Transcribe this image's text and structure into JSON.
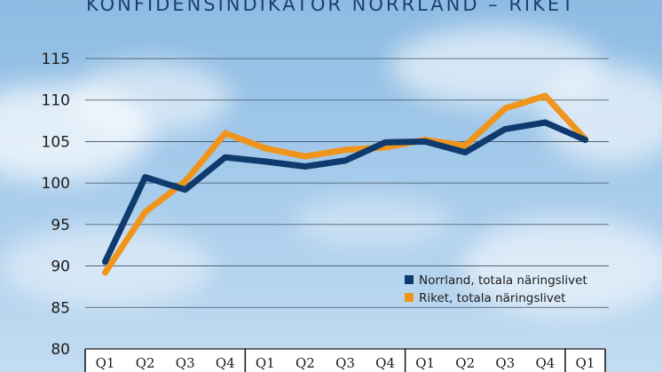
{
  "chart_data": {
    "type": "line",
    "title": "KONFIDENSINDIKATOR NORRLAND – RIKET",
    "categories": [
      "Q1",
      "Q2",
      "Q3",
      "Q4",
      "Q1",
      "Q2",
      "Q3",
      "Q4",
      "Q1",
      "Q2",
      "Q3",
      "Q4",
      "Q1"
    ],
    "ylim": [
      80,
      115
    ],
    "yticks": [
      80,
      85,
      90,
      95,
      100,
      105,
      110,
      115
    ],
    "grid": true,
    "legend_position": "bottom-right",
    "series": [
      {
        "name": "Norrland, totala näringslivet",
        "color": "#0e3a6e",
        "values": [
          90.5,
          100.7,
          99.2,
          103.1,
          102.6,
          102.0,
          102.7,
          104.9,
          105.0,
          103.7,
          106.5,
          107.3,
          105.2
        ]
      },
      {
        "name": "Riket, totala näringslivet",
        "color": "#f0951c",
        "values": [
          89.2,
          96.5,
          100.2,
          106.0,
          104.2,
          103.2,
          104.0,
          104.3,
          105.2,
          104.5,
          109.0,
          110.5,
          105.3
        ]
      }
    ]
  }
}
